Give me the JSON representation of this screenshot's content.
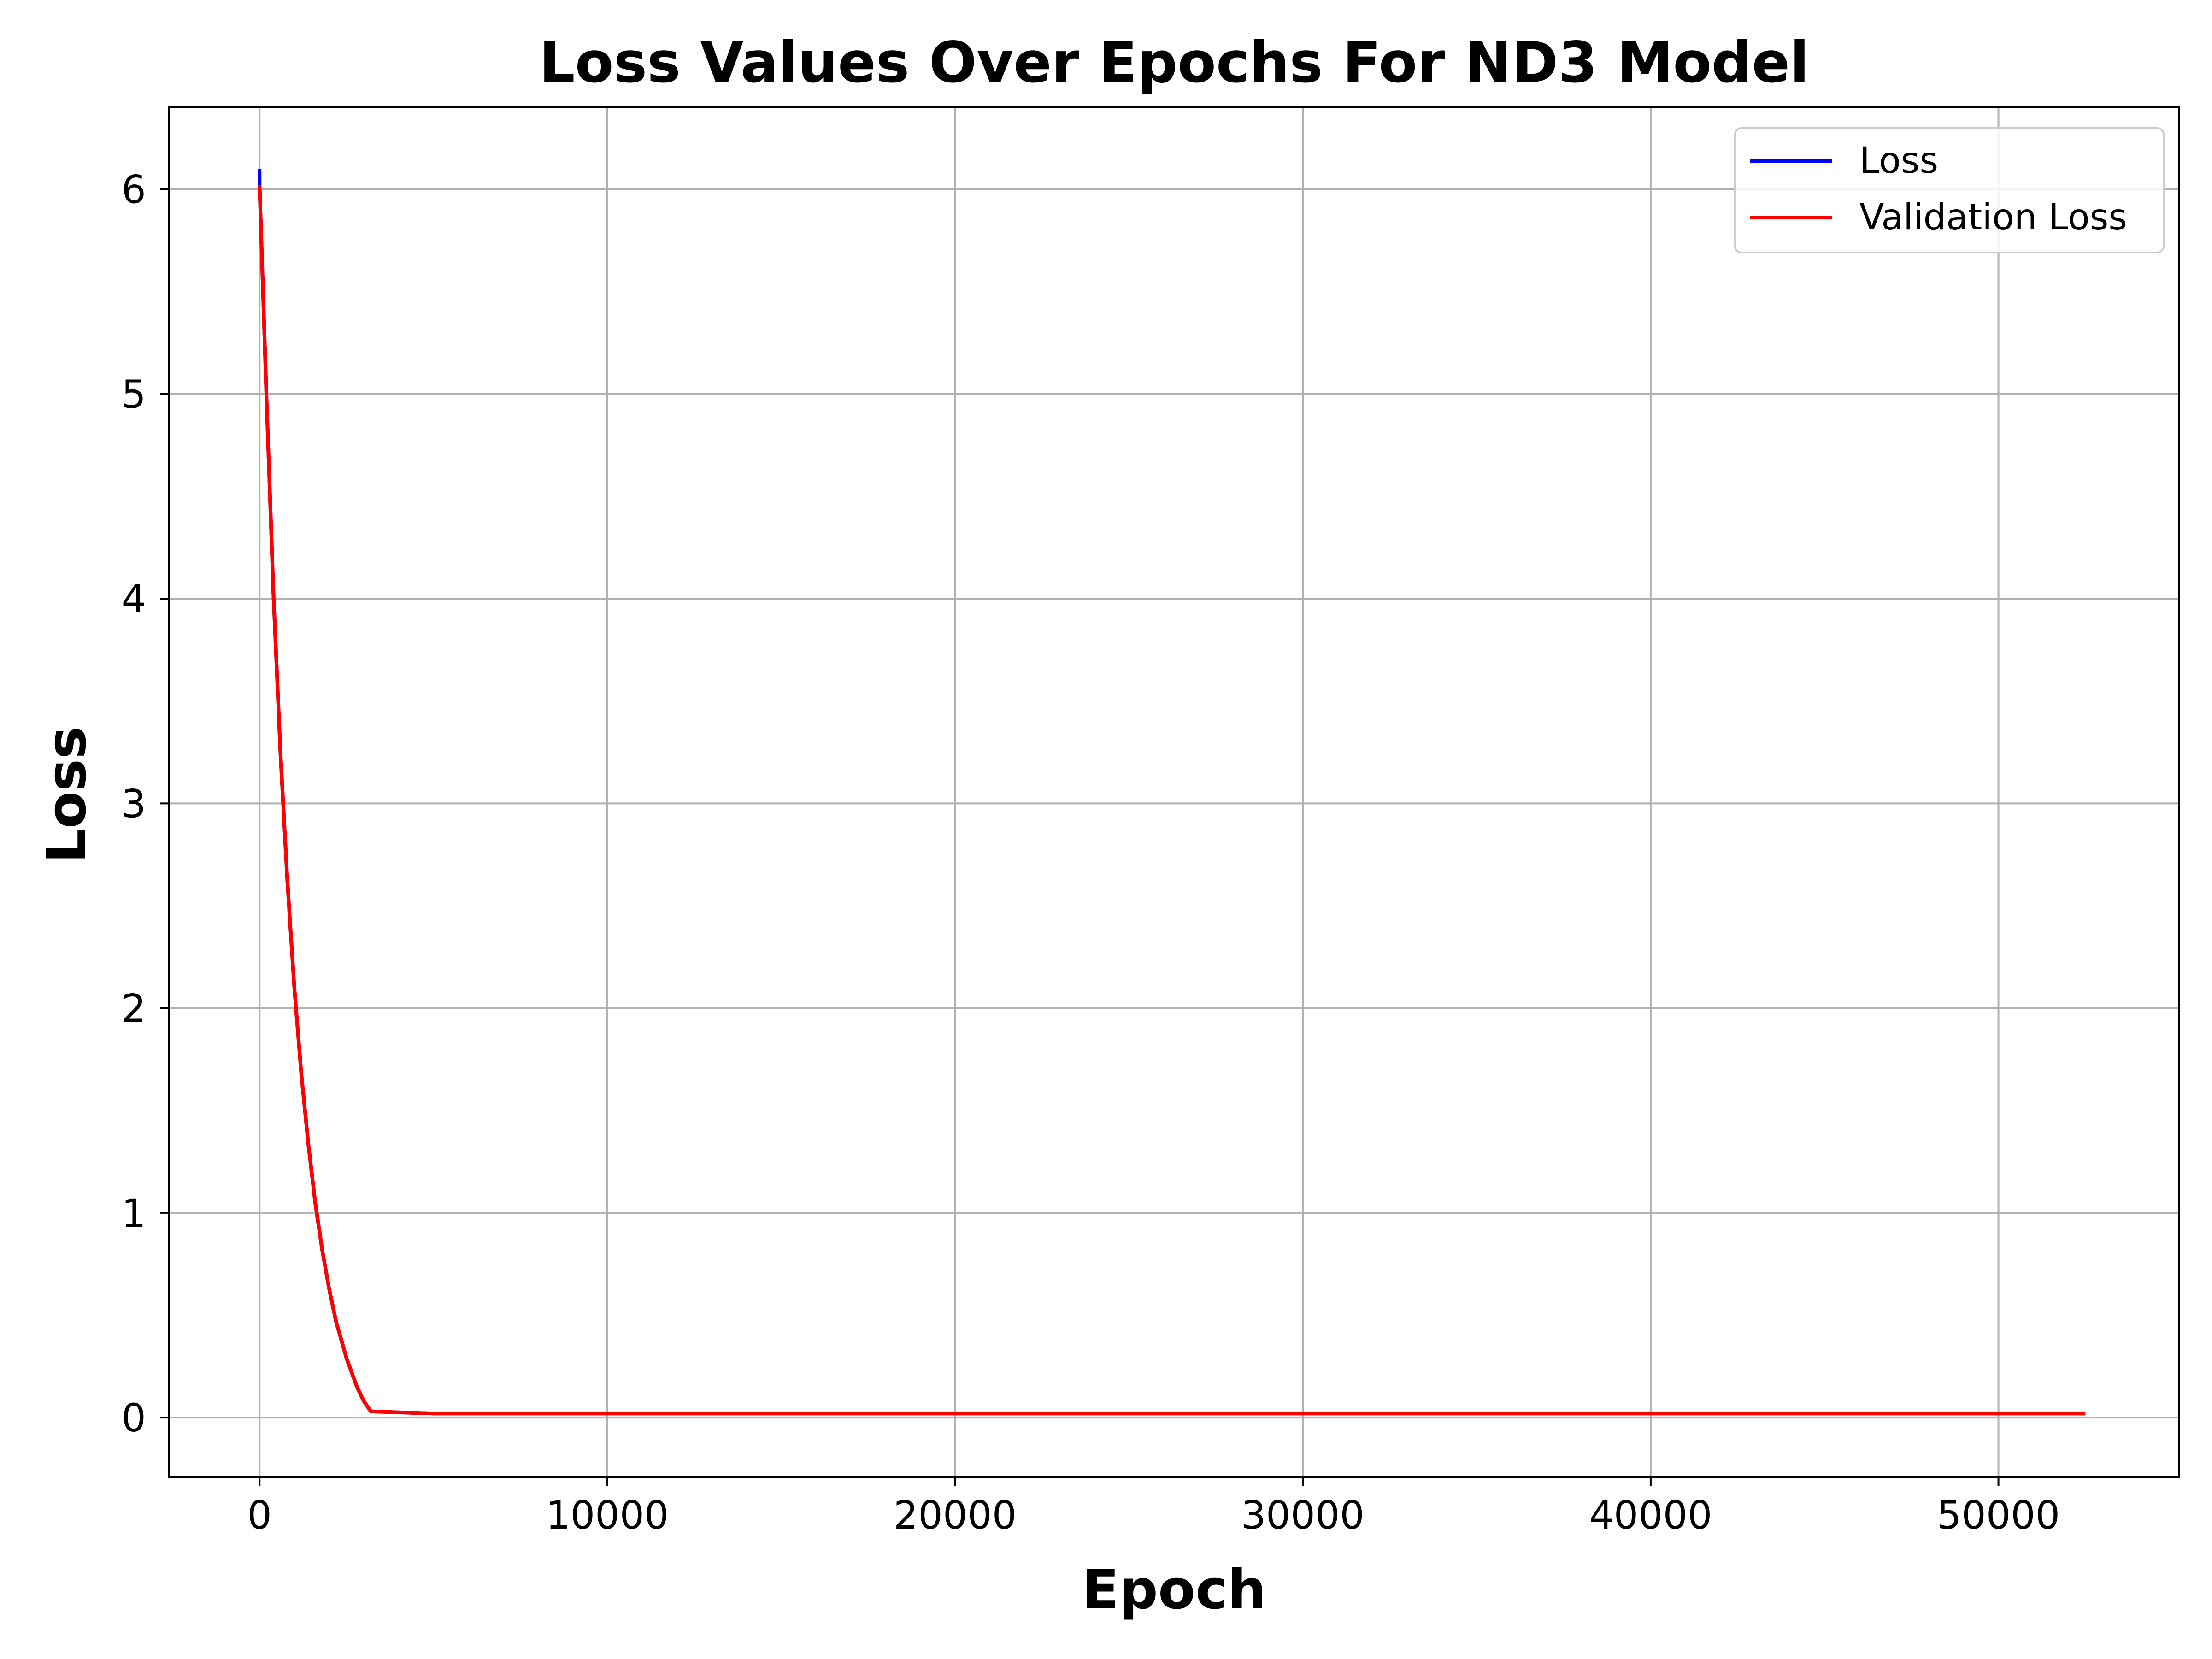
{
  "chart_data": {
    "type": "line",
    "title": "Loss Values Over Epochs For ND3 Model",
    "xlabel": "Epoch",
    "ylabel": "Loss",
    "xlim": [
      -2600,
      55200
    ],
    "ylim": [
      -0.29,
      6.4
    ],
    "xticks": [
      0,
      10000,
      20000,
      30000,
      40000,
      50000
    ],
    "yticks": [
      0,
      1,
      2,
      3,
      4,
      5,
      6
    ],
    "grid": true,
    "legend_position": "top-right",
    "series": [
      {
        "name": "Loss",
        "color": "#0000ff",
        "x": [
          0,
          1,
          200,
          400,
          600,
          800,
          1000,
          1200,
          1400,
          1600,
          1800,
          2000,
          2200,
          2500,
          2800,
          3000,
          3200,
          5000,
          10000,
          20000,
          30000,
          40000,
          52500
        ],
        "y": [
          6.1,
          6.02,
          4.98,
          4.02,
          3.25,
          2.62,
          2.1,
          1.68,
          1.34,
          1.05,
          0.82,
          0.63,
          0.47,
          0.29,
          0.15,
          0.08,
          0.03,
          0.02,
          0.02,
          0.02,
          0.02,
          0.02,
          0.02
        ]
      },
      {
        "name": "Validation Loss",
        "color": "#ff0000",
        "x": [
          0,
          200,
          400,
          600,
          800,
          1000,
          1200,
          1400,
          1600,
          1800,
          2000,
          2200,
          2500,
          2800,
          3000,
          3200,
          5000,
          10000,
          20000,
          30000,
          40000,
          52500
        ],
        "y": [
          6.02,
          4.98,
          4.02,
          3.25,
          2.62,
          2.1,
          1.68,
          1.34,
          1.05,
          0.82,
          0.63,
          0.47,
          0.29,
          0.15,
          0.08,
          0.03,
          0.02,
          0.02,
          0.02,
          0.02,
          0.02,
          0.02
        ]
      }
    ]
  }
}
